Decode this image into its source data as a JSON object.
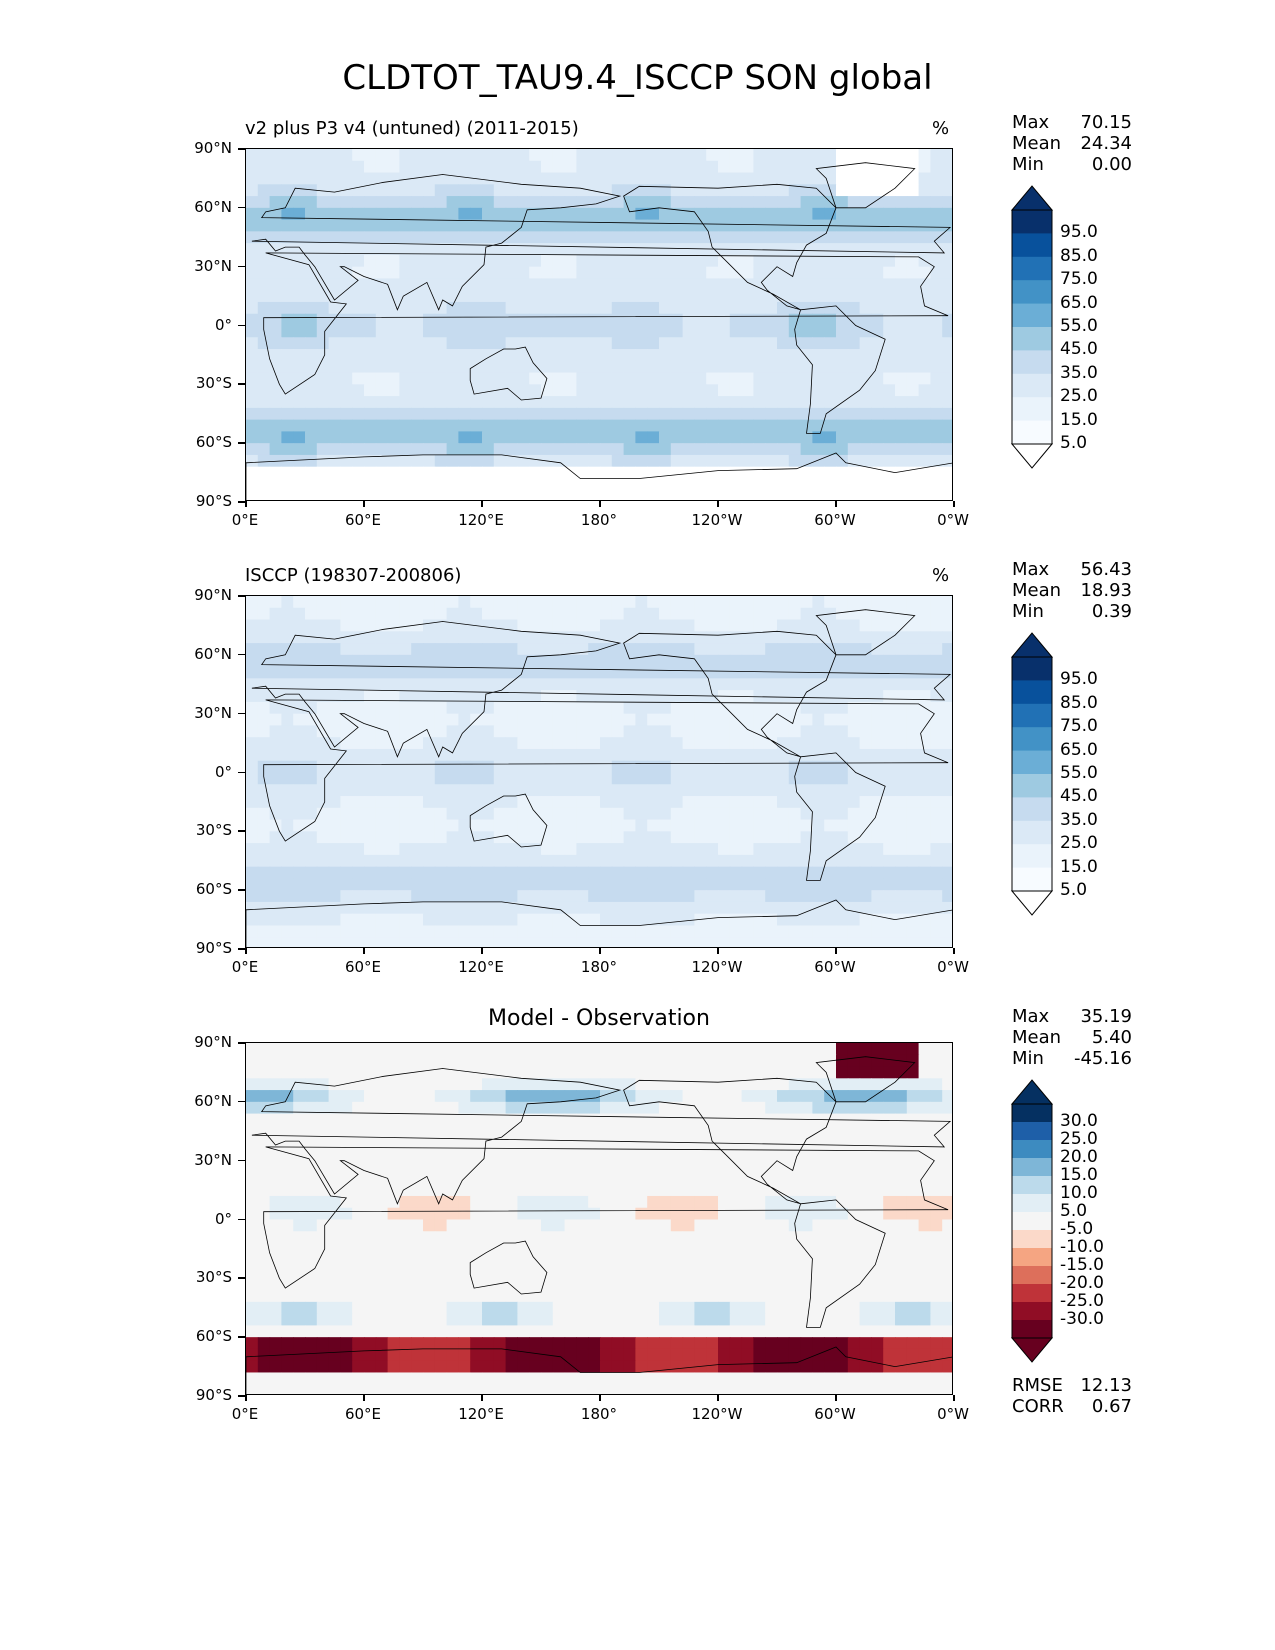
{
  "figure_title": "CLDTOT_TAU9.4_ISCCP SON global",
  "lat_ticks": [
    "90°N",
    "60°N",
    "30°N",
    "0°",
    "30°S",
    "60°S",
    "90°S"
  ],
  "lon_ticks": [
    "0°E",
    "60°E",
    "120°E",
    "180°",
    "120°W",
    "60°W",
    "0°W"
  ],
  "panels": [
    {
      "left_title": "v2 plus P3 v4 (untuned) (2011-2015)",
      "unit": "%",
      "center_title": "",
      "stats": [
        {
          "label": "Max",
          "value": "70.15"
        },
        {
          "label": "Mean",
          "value": "24.34"
        },
        {
          "label": "Min",
          "value": "0.00"
        }
      ],
      "colorbar": {
        "labels": [
          "95.0",
          "85.0",
          "75.0",
          "65.0",
          "55.0",
          "45.0",
          "35.0",
          "25.0",
          "15.0",
          "5.0"
        ],
        "colors": [
          "#08306b",
          "#08519c",
          "#2171b5",
          "#4292c6",
          "#6baed6",
          "#9ecae1",
          "#c6dbef",
          "#dbe9f6",
          "#eaf3fb",
          "#f7fbff"
        ],
        "top_extend_color": "#08306b",
        "bottom_extend_color": "#ffffff"
      }
    },
    {
      "left_title": "ISCCP (198307-200806)",
      "unit": "%",
      "center_title": "",
      "stats": [
        {
          "label": "Max",
          "value": "56.43"
        },
        {
          "label": "Mean",
          "value": "18.93"
        },
        {
          "label": "Min",
          "value": "0.39"
        }
      ],
      "colorbar": {
        "labels": [
          "95.0",
          "85.0",
          "75.0",
          "65.0",
          "55.0",
          "45.0",
          "35.0",
          "25.0",
          "15.0",
          "5.0"
        ],
        "colors": [
          "#08306b",
          "#08519c",
          "#2171b5",
          "#4292c6",
          "#6baed6",
          "#9ecae1",
          "#c6dbef",
          "#dbe9f6",
          "#eaf3fb",
          "#f7fbff"
        ],
        "top_extend_color": "#08306b",
        "bottom_extend_color": "#ffffff"
      }
    },
    {
      "left_title": "",
      "unit": "",
      "center_title": "Model - Observation",
      "stats": [
        {
          "label": "Max",
          "value": "35.19"
        },
        {
          "label": "Mean",
          "value": "5.40"
        },
        {
          "label": "Min",
          "value": "-45.16"
        }
      ],
      "colorbar": {
        "labels": [
          "30.0",
          "25.0",
          "20.0",
          "15.0",
          "10.0",
          "5.0",
          "-5.0",
          "-10.0",
          "-15.0",
          "-20.0",
          "-25.0",
          "-30.0"
        ],
        "colors": [
          "#053061",
          "#1e5fa8",
          "#3d8bc0",
          "#7eb6d7",
          "#bcdaeb",
          "#e2eef5",
          "#f5f5f5",
          "#fbd9c9",
          "#f5a582",
          "#dd6f5b",
          "#bf3339",
          "#900d25",
          "#67001f"
        ],
        "top_extend_color": "#053061",
        "bottom_extend_color": "#67001f"
      },
      "metrics": [
        {
          "label": "RMSE",
          "value": "12.13"
        },
        {
          "label": "CORR",
          "value": "0.67"
        }
      ]
    }
  ]
}
